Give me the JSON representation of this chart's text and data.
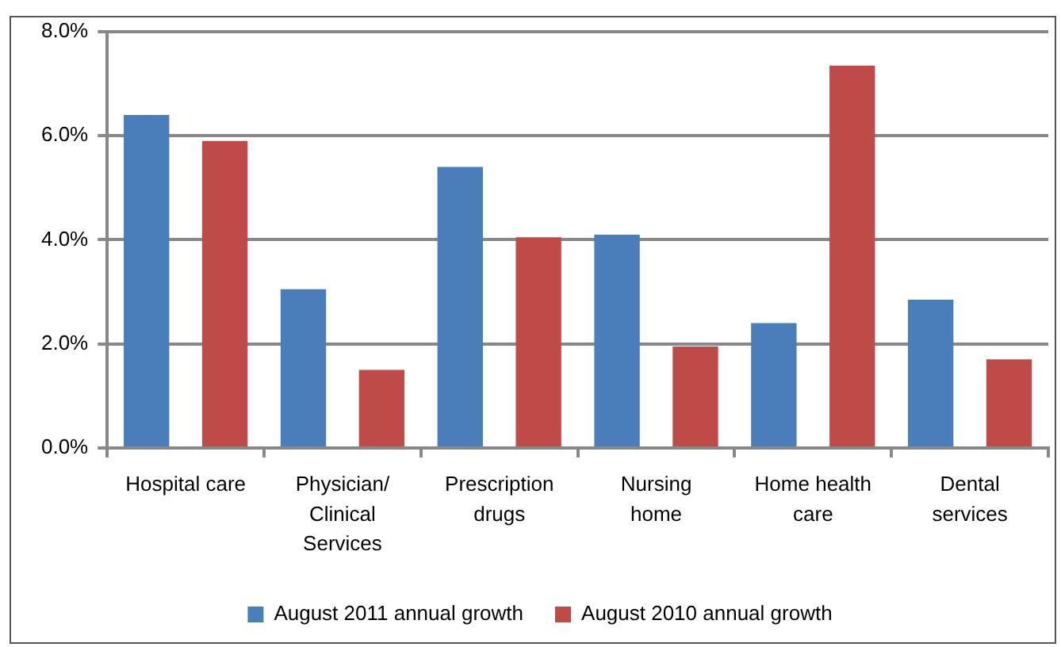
{
  "chart_data": {
    "type": "bar",
    "categories": [
      "Hospital care",
      "Physician/ Clinical Services",
      "Prescription drugs",
      "Nursing home",
      "Home health care",
      "Dental services"
    ],
    "series": [
      {
        "name": "August 2011 annual growth",
        "color": "#4a7ebb",
        "values": [
          6.4,
          3.05,
          5.4,
          4.1,
          2.4,
          2.85
        ]
      },
      {
        "name": "August 2010 annual growth",
        "color": "#be4b48",
        "values": [
          5.9,
          1.5,
          4.05,
          1.95,
          7.35,
          1.7
        ]
      }
    ],
    "ylim": [
      0,
      8
    ],
    "yticks": [
      {
        "value": 0,
        "label": "0.0%"
      },
      {
        "value": 2,
        "label": "2.0%"
      },
      {
        "value": 4,
        "label": "4.0%"
      },
      {
        "value": 6,
        "label": "6.0%"
      },
      {
        "value": 8,
        "label": "8.0%"
      }
    ],
    "grid": "y",
    "legend": "bottom"
  }
}
